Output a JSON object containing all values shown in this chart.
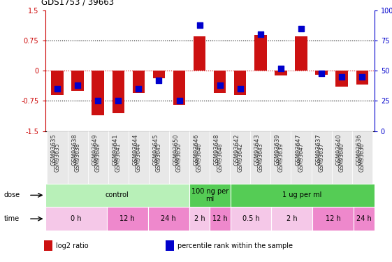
{
  "title": "GDS1753 / 39663",
  "samples": [
    "GSM93635",
    "GSM93638",
    "GSM93649",
    "GSM93641",
    "GSM93644",
    "GSM93645",
    "GSM93650",
    "GSM93646",
    "GSM93648",
    "GSM93642",
    "GSM93643",
    "GSM93639",
    "GSM93647",
    "GSM93637",
    "GSM93640",
    "GSM93636"
  ],
  "log2_ratio": [
    -0.6,
    -0.5,
    -1.1,
    -1.05,
    -0.55,
    -0.18,
    -0.85,
    0.85,
    -0.55,
    -0.6,
    0.9,
    -0.12,
    0.85,
    -0.1,
    -0.4,
    -0.35
  ],
  "pct_rank": [
    35,
    38,
    25,
    25,
    35,
    42,
    25,
    88,
    38,
    35,
    80,
    52,
    85,
    48,
    45,
    45
  ],
  "dose_groups": [
    {
      "label": "control",
      "start": 0,
      "end": 7,
      "color": "#b8f0b8"
    },
    {
      "label": "100 ng per\nml",
      "start": 7,
      "end": 9,
      "color": "#55cc55"
    },
    {
      "label": "1 ug per ml",
      "start": 9,
      "end": 16,
      "color": "#55cc55"
    }
  ],
  "time_groups": [
    {
      "label": "0 h",
      "start": 0,
      "end": 3,
      "color": "#f5c8e8"
    },
    {
      "label": "12 h",
      "start": 3,
      "end": 5,
      "color": "#ee88cc"
    },
    {
      "label": "24 h",
      "start": 5,
      "end": 7,
      "color": "#ee88cc"
    },
    {
      "label": "2 h",
      "start": 7,
      "end": 8,
      "color": "#f5c8e8"
    },
    {
      "label": "12 h",
      "start": 8,
      "end": 9,
      "color": "#ee88cc"
    },
    {
      "label": "0.5 h",
      "start": 9,
      "end": 11,
      "color": "#f5c8e8"
    },
    {
      "label": "2 h",
      "start": 11,
      "end": 13,
      "color": "#f5c8e8"
    },
    {
      "label": "12 h",
      "start": 13,
      "end": 15,
      "color": "#ee88cc"
    },
    {
      "label": "24 h",
      "start": 15,
      "end": 16,
      "color": "#ee88cc"
    }
  ],
  "bar_color": "#CC1111",
  "dot_color": "#0000CC",
  "ylim": [
    -1.5,
    1.5
  ],
  "yticks_left": [
    -1.5,
    -0.75,
    0,
    0.75,
    1.5
  ],
  "yticks_right": [
    0,
    25,
    50,
    75,
    100
  ],
  "hlines": [
    0.75,
    0,
    -0.75
  ],
  "bar_width": 0.6,
  "dot_size": 28,
  "legend_items": [
    "log2 ratio",
    "percentile rank within the sample"
  ],
  "legend_colors": [
    "#CC1111",
    "#0000CC"
  ],
  "left_axis_color": "#CC0000",
  "right_axis_color": "#0000CC"
}
